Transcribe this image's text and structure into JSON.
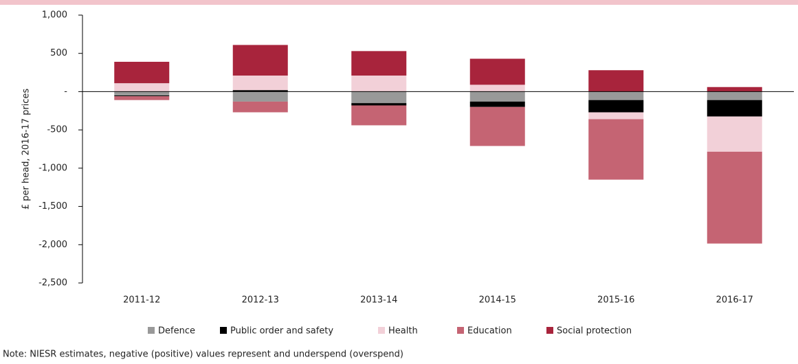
{
  "chart_data": {
    "type": "stacked-bar",
    "y_label": "£ per head, 2016-17 prices",
    "categories": [
      "2011-12",
      "2012-13",
      "2013-14",
      "2014-15",
      "2015-16",
      "2016-17"
    ],
    "series": [
      {
        "name": "Defence",
        "color": "#999999",
        "values": [
          -50,
          -130,
          -150,
          -130,
          -110,
          -110
        ]
      },
      {
        "name": "Public order and safety",
        "color": "#000000",
        "values": [
          -10,
          20,
          -30,
          -70,
          -160,
          -215
        ]
      },
      {
        "name": "Health",
        "color": "#f2d0d8",
        "values": [
          110,
          190,
          210,
          90,
          -90,
          -460
        ]
      },
      {
        "name": "Education",
        "color": "#c56473",
        "values": [
          -50,
          -140,
          -260,
          -510,
          -790,
          -1200
        ]
      },
      {
        "name": "Social protection",
        "color": "#a8243c",
        "values": [
          280,
          400,
          320,
          340,
          280,
          60
        ]
      }
    ],
    "ylim": [
      -2500,
      1000
    ],
    "yticks": [
      {
        "value": -2500,
        "label": "-2,500"
      },
      {
        "value": -2000,
        "label": "-2,000"
      },
      {
        "value": -1500,
        "label": "-1,500"
      },
      {
        "value": -1000,
        "label": "-1,000"
      },
      -500,
      {
        "value": 0,
        "label": "-"
      },
      500,
      {
        "value": 1000,
        "label": "1,000"
      }
    ],
    "note": "Note: NIESR estimates, negative (positive) values represent and underspend (overspend)"
  }
}
